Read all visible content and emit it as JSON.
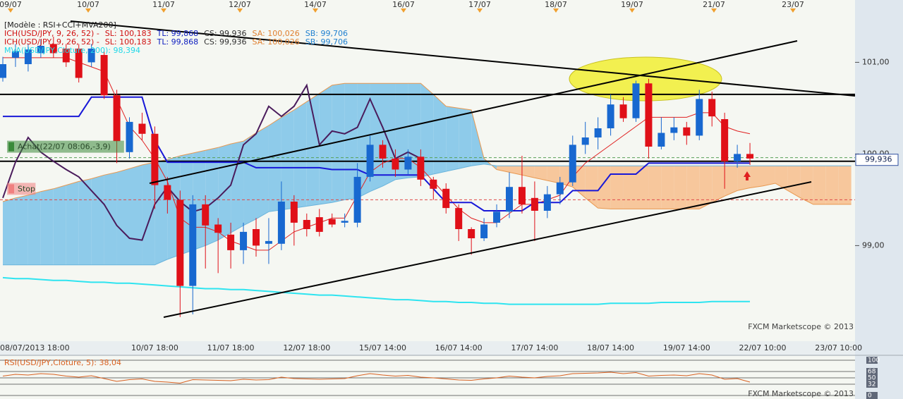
{
  "chart_data": [
    {
      "type": "candlestick",
      "legend_lines": [
        [
          {
            "text": "[Modèle : RSI+CCI+MVA200]",
            "color": "#202020"
          }
        ],
        [
          {
            "text": "ICH(USD/JPY, 9, 26, 52) -",
            "color": "#d01010"
          },
          {
            "text": "SL: 100,183",
            "color": "#d01010"
          },
          {
            "text": "TL: 99,868",
            "color": "#1020c0"
          },
          {
            "text": "CS: 99,936",
            "color": "#303030"
          },
          {
            "text": "SA: 100,026",
            "color": "#e08030"
          },
          {
            "text": "SB: 99,706",
            "color": "#2080d0"
          }
        ],
        [
          {
            "text": "ICH(USD/JPY, 9, 26, 52) -",
            "color": "#d01010"
          },
          {
            "text": "SL: 100,183",
            "color": "#d01010"
          },
          {
            "text": "TL: 99,868",
            "color": "#1020c0"
          },
          {
            "text": "CS: 99,936",
            "color": "#303030"
          },
          {
            "text": "SA: 100,026",
            "color": "#e08030"
          },
          {
            "text": "SB: 99,706",
            "color": "#2080d0"
          }
        ],
        [
          {
            "text": "MVA(USD/JPY,Cloture, 200): 98,394",
            "color": "#20d8e8"
          }
        ]
      ],
      "top_labels": [
        "09/07",
        "10/07",
        "11/07",
        "12/07",
        "14/07",
        "16/07",
        "17/07",
        "18/07",
        "19/07",
        "21/07",
        "23/07"
      ],
      "categories": [
        null,
        null,
        "08/07/2013 18:00",
        null,
        null,
        null,
        null,
        null,
        null,
        null,
        null,
        null,
        "10/07 18:00",
        null,
        null,
        null,
        null,
        null,
        "11/07 18:00",
        null,
        null,
        null,
        null,
        null,
        "12/07 18:00",
        null,
        null,
        null,
        null,
        null,
        "15/07 14:00",
        null,
        null,
        null,
        null,
        null,
        "16/07 14:00",
        null,
        null,
        null,
        null,
        null,
        "17/07 14:00",
        null,
        null,
        null,
        null,
        null,
        "18/07 14:00",
        null,
        null,
        null,
        null,
        null,
        "19/07 14:00",
        null,
        null,
        null,
        null,
        null,
        "22/07 10:00",
        null,
        null,
        null,
        null,
        null,
        "23/07 10:00",
        null
      ],
      "open": [
        100.83,
        101.05,
        100.98,
        101.1,
        101.2,
        101.15,
        101.15,
        101.0,
        101.08,
        100.64,
        100.02,
        100.33,
        100.22,
        99.66,
        99.5,
        98.56,
        99.45,
        99.23,
        99.12,
        98.95,
        99.18,
        99.02,
        99.02,
        99.48,
        99.28,
        99.31,
        99.29,
        99.25,
        99.25,
        99.75,
        100.1,
        99.95,
        99.83,
        99.97,
        99.72,
        99.62,
        99.41,
        99.18,
        99.08,
        99.25,
        99.37,
        99.64,
        99.52,
        99.38,
        99.56,
        99.69,
        100.1,
        100.18,
        100.28,
        100.54,
        100.39,
        100.77,
        100.08,
        100.23,
        100.29,
        100.2,
        100.6,
        100.38,
        99.92,
        100.0,
        null,
        null,
        null,
        null,
        null,
        null,
        null,
        null
      ],
      "high": [
        101.06,
        101.2,
        101.2,
        101.25,
        101.28,
        101.2,
        101.2,
        101.2,
        101.12,
        100.7,
        100.4,
        100.45,
        100.3,
        99.75,
        99.6,
        99.55,
        99.55,
        99.3,
        99.25,
        99.25,
        99.3,
        99.3,
        99.7,
        99.55,
        99.35,
        99.4,
        99.35,
        99.35,
        99.9,
        100.2,
        100.15,
        100.05,
        100.05,
        100.05,
        99.75,
        99.68,
        99.45,
        99.2,
        99.3,
        99.45,
        99.8,
        99.98,
        99.7,
        99.65,
        99.75,
        100.2,
        100.35,
        100.4,
        100.65,
        100.62,
        100.8,
        100.82,
        100.4,
        100.4,
        100.35,
        100.7,
        100.68,
        100.45,
        100.1,
        100.12,
        null,
        null,
        null,
        null,
        null,
        null,
        null,
        null
      ],
      "low": [
        100.79,
        100.95,
        100.9,
        101.05,
        101.05,
        100.95,
        100.78,
        100.95,
        100.6,
        99.9,
        99.95,
        100.15,
        99.4,
        99.35,
        98.22,
        98.25,
        98.75,
        98.7,
        98.75,
        98.8,
        98.88,
        98.8,
        98.95,
        99.0,
        99.1,
        99.1,
        99.2,
        99.2,
        99.2,
        99.7,
        99.85,
        99.75,
        99.78,
        99.65,
        99.5,
        99.35,
        99.05,
        98.9,
        99.05,
        99.2,
        99.3,
        99.35,
        99.05,
        99.3,
        99.45,
        99.65,
        100.0,
        100.05,
        100.2,
        100.35,
        100.35,
        99.95,
        100.05,
        100.15,
        100.1,
        100.15,
        100.3,
        99.62,
        99.85,
        99.88,
        null,
        null,
        null,
        null,
        null,
        null,
        null,
        null
      ],
      "close": [
        100.98,
        101.12,
        101.14,
        101.18,
        101.1,
        101.0,
        100.83,
        101.15,
        100.64,
        100.14,
        100.35,
        100.22,
        99.66,
        99.5,
        98.56,
        99.45,
        99.22,
        99.14,
        98.95,
        99.15,
        99.0,
        99.05,
        99.48,
        99.25,
        99.18,
        99.15,
        99.23,
        99.27,
        99.75,
        100.1,
        99.95,
        99.83,
        99.97,
        99.72,
        99.62,
        99.41,
        99.18,
        99.08,
        99.23,
        99.37,
        99.64,
        99.45,
        99.38,
        99.56,
        99.69,
        100.1,
        100.18,
        100.28,
        100.54,
        100.39,
        100.77,
        100.08,
        100.23,
        100.29,
        100.2,
        100.6,
        100.41,
        99.92,
        100.0,
        99.95,
        null,
        null,
        null,
        null,
        null,
        null,
        null,
        null
      ],
      "up_color": "#1868d0",
      "down_color": "#e01018",
      "cloud": {
        "sa_color": "#e89850",
        "sb_color": "#6ab4dc",
        "bull_fill": "#8ecbea",
        "bear_fill": "#f7c79c",
        "sa": [
          99.48,
          99.52,
          99.55,
          99.59,
          99.62,
          99.66,
          99.7,
          99.73,
          99.77,
          99.8,
          99.84,
          99.88,
          99.91,
          99.94,
          99.98,
          100.01,
          100.04,
          100.07,
          100.11,
          100.14,
          100.23,
          100.31,
          100.4,
          100.48,
          100.57,
          100.66,
          100.75,
          100.77,
          100.77,
          100.77,
          100.77,
          100.77,
          100.77,
          100.77,
          100.65,
          100.52,
          100.5,
          100.48,
          99.95,
          99.83,
          99.8,
          99.77,
          99.74,
          99.71,
          99.68,
          99.64,
          99.52,
          99.41,
          99.4,
          99.4,
          99.4,
          99.4,
          99.4,
          99.4,
          99.4,
          99.4,
          99.47,
          99.54,
          99.6,
          99.63,
          99.65,
          99.68,
          99.6,
          99.52,
          99.45,
          99.45,
          99.45,
          99.45
        ],
        "sb": [
          98.79,
          98.79,
          98.79,
          98.79,
          98.79,
          98.79,
          98.79,
          98.79,
          98.79,
          98.79,
          98.79,
          98.79,
          98.79,
          98.85,
          98.9,
          98.95,
          99.0,
          99.06,
          99.14,
          99.22,
          99.29,
          99.37,
          99.39,
          99.41,
          99.43,
          99.45,
          99.47,
          99.5,
          99.52,
          99.59,
          99.65,
          99.72,
          99.74,
          99.75,
          99.78,
          99.81,
          99.84,
          99.87,
          99.89,
          99.87,
          99.87,
          99.87,
          99.87,
          99.87,
          99.87,
          99.87,
          99.87,
          99.87,
          99.87,
          99.87,
          99.87,
          99.87,
          99.87,
          99.87,
          99.87,
          99.87,
          99.87,
          99.87,
          99.87,
          99.87,
          99.87,
          99.87,
          99.87,
          99.87,
          99.87,
          99.87,
          99.87,
          99.87
        ]
      },
      "lines": [
        {
          "color": "#2ee4f0",
          "width": 2,
          "values": [
            98.65,
            98.64,
            98.64,
            98.63,
            98.62,
            98.62,
            98.61,
            98.6,
            98.6,
            98.59,
            98.59,
            98.58,
            98.57,
            98.56,
            98.55,
            98.54,
            98.53,
            98.53,
            98.52,
            98.52,
            98.51,
            98.5,
            98.49,
            98.48,
            98.47,
            98.46,
            98.46,
            98.45,
            98.44,
            98.43,
            98.42,
            98.41,
            98.41,
            98.4,
            98.39,
            98.39,
            98.38,
            98.38,
            98.37,
            98.37,
            98.36,
            98.36,
            98.36,
            98.36,
            98.36,
            98.36,
            98.36,
            98.36,
            98.37,
            98.37,
            98.37,
            98.37,
            98.38,
            98.38,
            98.38,
            98.38,
            98.39,
            98.39,
            98.39,
            98.39,
            null,
            null,
            null,
            null,
            null,
            null,
            null,
            null
          ]
        },
        {
          "color": "#e02020",
          "width": 1,
          "values": [
            101.05,
            101.05,
            101.05,
            101.05,
            101.05,
            101.05,
            101.0,
            100.95,
            100.9,
            100.6,
            100.3,
            100.15,
            99.95,
            99.7,
            99.3,
            99.2,
            99.2,
            99.15,
            99.05,
            99.0,
            98.95,
            98.95,
            99.05,
            99.15,
            99.2,
            99.25,
            99.3,
            99.3,
            99.55,
            99.8,
            99.9,
            99.95,
            99.95,
            99.85,
            99.7,
            99.55,
            99.4,
            99.3,
            99.25,
            99.25,
            99.35,
            99.45,
            99.45,
            99.5,
            99.55,
            99.75,
            99.9,
            100.0,
            100.1,
            100.2,
            100.3,
            100.4,
            100.4,
            100.4,
            100.4,
            100.45,
            100.45,
            100.3,
            100.25,
            100.22,
            null,
            null,
            null,
            null,
            null,
            null,
            null,
            null
          ]
        },
        {
          "color": "#1818d8",
          "width": 2,
          "values": [
            100.41,
            100.41,
            100.41,
            100.41,
            100.41,
            100.41,
            100.41,
            100.62,
            100.62,
            100.62,
            100.62,
            100.62,
            100.15,
            99.91,
            99.91,
            99.91,
            99.91,
            99.91,
            99.91,
            99.91,
            99.85,
            99.85,
            99.85,
            99.85,
            99.85,
            99.85,
            99.83,
            99.83,
            99.83,
            99.77,
            99.77,
            99.77,
            99.77,
            99.77,
            99.62,
            99.47,
            99.47,
            99.47,
            99.38,
            99.38,
            99.38,
            99.38,
            99.47,
            99.47,
            99.47,
            99.6,
            99.6,
            99.6,
            99.78,
            99.78,
            99.78,
            99.9,
            99.9,
            99.9,
            99.9,
            99.9,
            99.9,
            99.9,
            99.9,
            99.9,
            null,
            null,
            null,
            null,
            null,
            null,
            null,
            null
          ]
        },
        {
          "color": "#4a1c5c",
          "width": 2,
          "values": [
            99.52,
            99.91,
            100.18,
            100.02,
            99.92,
            99.83,
            99.75,
            99.6,
            99.45,
            99.22,
            99.08,
            99.06,
            99.45,
            99.64,
            99.48,
            99.37,
            99.41,
            99.52,
            99.66,
            100.1,
            100.22,
            100.52,
            100.41,
            100.52,
            100.75,
            100.1,
            100.25,
            100.22,
            100.29,
            100.6,
            100.29,
            99.95,
            100.02,
            99.95,
            null,
            null,
            null,
            null,
            null,
            null,
            null,
            null,
            null,
            null,
            null,
            null,
            null,
            null,
            null,
            null,
            null,
            null,
            null,
            null,
            null,
            null,
            null,
            null,
            null,
            null,
            null,
            null,
            null,
            null,
            null,
            null,
            null,
            null
          ]
        }
      ],
      "levels": [
        {
          "value": 100.65,
          "color": "#000000",
          "width": 2
        },
        {
          "value": 99.92,
          "color": "#000000",
          "width": 2
        },
        {
          "value": 99.96,
          "color": "#58a058",
          "width": 1,
          "dashed": true,
          "label": "Achat(22/07 08:06,-3,9)",
          "label_color": "#3a8a3a"
        },
        {
          "value": 99.5,
          "color": "#e04848",
          "width": 1,
          "dashed": true,
          "label": "Stop",
          "label_color": "#f08080"
        }
      ],
      "ylim": [
        97.98,
        101.58
      ],
      "yticks": [
        {
          "value": 101,
          "label": "101,00"
        },
        {
          "value": 100,
          "label": "100,00"
        },
        {
          "value": 99,
          "label": "99,00"
        }
      ],
      "price_tag": {
        "value": 99.936,
        "label": "99,936"
      },
      "watermark": "FXCM Marketscope © 2013"
    },
    {
      "type": "line",
      "title": "RSI(USD/JPY,Cloture, 5): 38,04",
      "color": "#d86020",
      "values": [
        55,
        60,
        58,
        62,
        60,
        55,
        52,
        56,
        48,
        40,
        45,
        47,
        40,
        38,
        35,
        45,
        44,
        43,
        42,
        46,
        44,
        45,
        52,
        48,
        47,
        46,
        47,
        48,
        56,
        62,
        58,
        55,
        57,
        52,
        50,
        47,
        44,
        43,
        47,
        50,
        55,
        52,
        50,
        54,
        56,
        62,
        63,
        64,
        66,
        62,
        65,
        55,
        57,
        58,
        56,
        62,
        58,
        46,
        48,
        38.04
      ],
      "ylim": [
        0,
        100
      ],
      "yticks": [
        100,
        68,
        50,
        32,
        0
      ],
      "watermark": "FXCM Marketscope © 2013"
    }
  ]
}
